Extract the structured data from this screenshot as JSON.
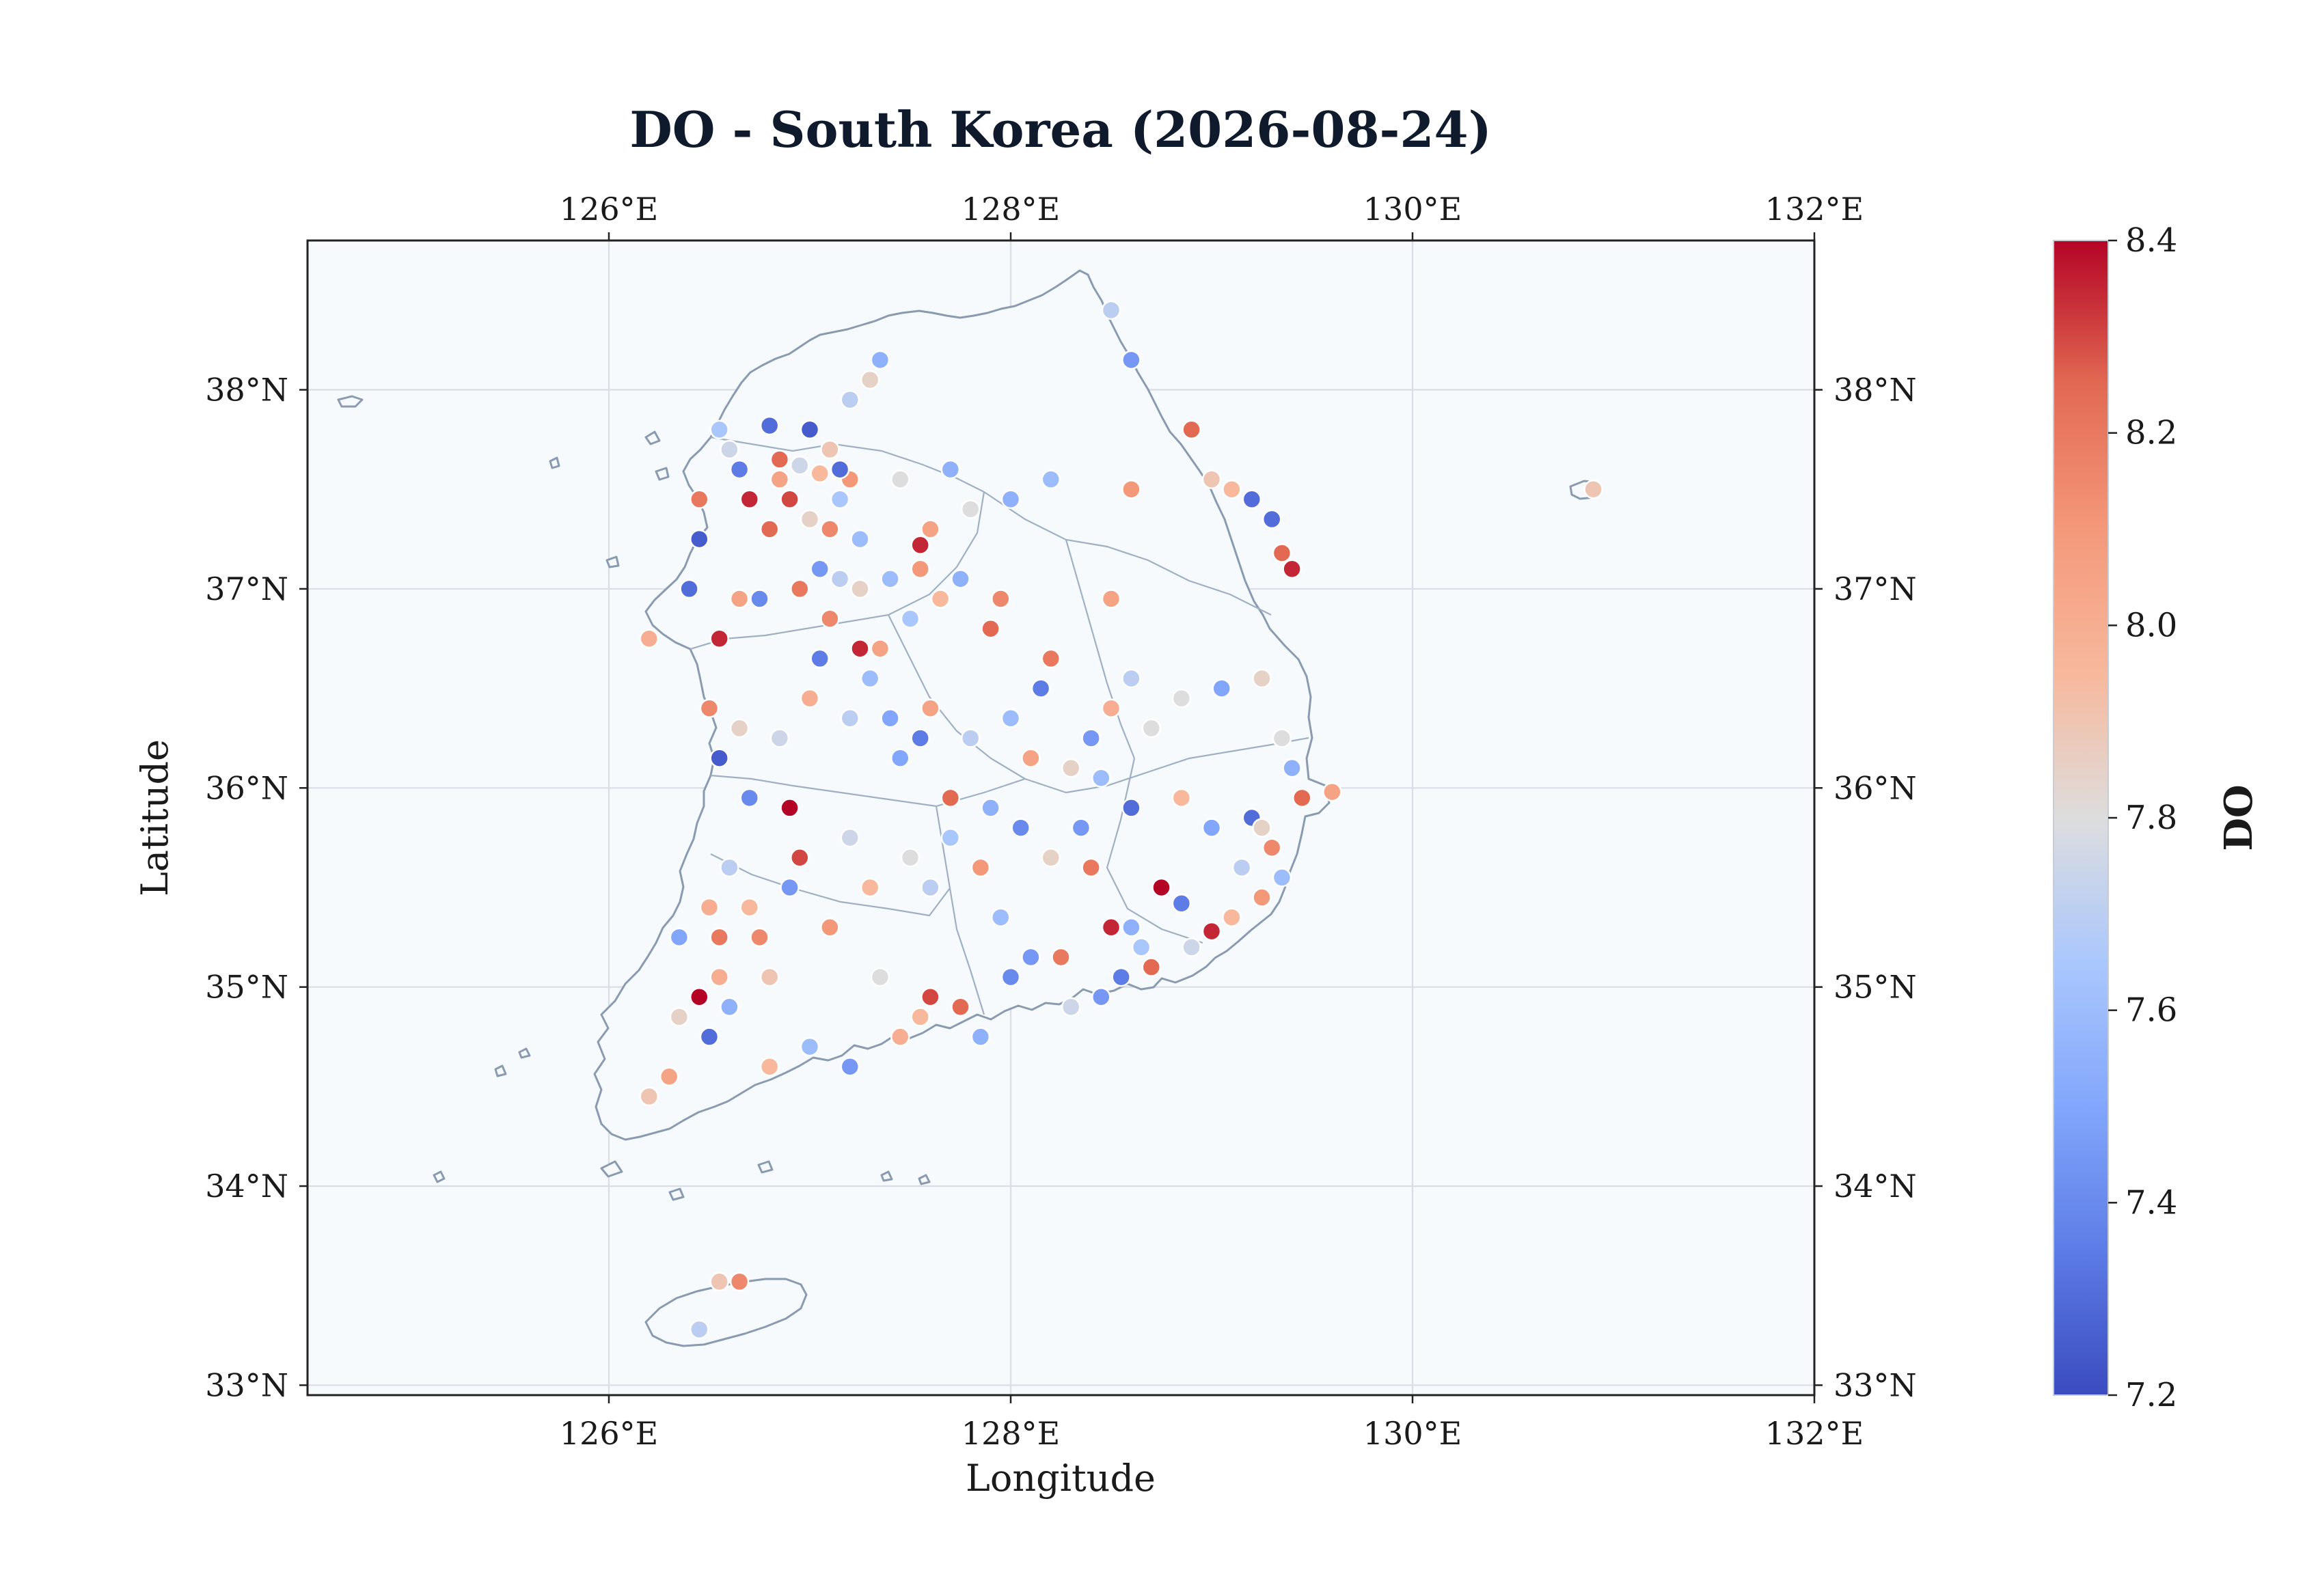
{
  "figure": {
    "title": "DO - South Korea (2026-08-24)",
    "xlabel": "Longitude",
    "ylabel": "Latitude"
  },
  "map": {
    "lon_range": [
      124.5,
      132.0
    ],
    "lat_range": [
      32.95,
      38.75
    ],
    "lon_ticks": [
      126,
      128,
      130,
      132
    ],
    "lat_ticks": [
      33,
      34,
      35,
      36,
      37,
      38
    ],
    "lon_tick_labels": [
      "126°E",
      "128°E",
      "130°E",
      "132°E"
    ],
    "lat_tick_labels": [
      "33°N",
      "34°N",
      "35°N",
      "36°N",
      "37°N",
      "38°N"
    ],
    "grid": true,
    "background_color": "#f7fafd",
    "coastline_color": "#8a9bb0",
    "colors": {
      "low": "#3b4cc0",
      "mid": "#dddddd",
      "high": "#b40426"
    }
  },
  "colorbar": {
    "label": "DO",
    "min": 7.2,
    "max": 8.4,
    "ticks": [
      "7.2",
      "7.4",
      "7.6",
      "7.8",
      "8.0",
      "8.2",
      "8.4"
    ],
    "colormap": "coolwarm"
  },
  "chart_data": {
    "type": "scatter",
    "title": "DO - South Korea (2026-08-24)",
    "xlabel": "Longitude",
    "ylabel": "Latitude",
    "xlim": [
      124.5,
      132.0
    ],
    "ylim": [
      32.95,
      38.75
    ],
    "points": [
      [
        126.55,
        37.8,
        7.65
      ],
      [
        126.8,
        37.82,
        7.3
      ],
      [
        126.65,
        37.6,
        7.35
      ],
      [
        126.85,
        37.55,
        8.05
      ],
      [
        126.95,
        37.62,
        7.75
      ],
      [
        127.05,
        37.58,
        7.95
      ],
      [
        127.2,
        37.55,
        8.1
      ],
      [
        127.15,
        37.45,
        7.65
      ],
      [
        126.9,
        37.45,
        8.3
      ],
      [
        126.7,
        37.45,
        8.35
      ],
      [
        127.0,
        37.35,
        7.85
      ],
      [
        127.1,
        37.3,
        8.15
      ],
      [
        126.8,
        37.3,
        8.25
      ],
      [
        127.25,
        37.25,
        7.6
      ],
      [
        127.45,
        37.55,
        7.8
      ],
      [
        127.6,
        37.3,
        8.05
      ],
      [
        127.55,
        37.22,
        8.35
      ],
      [
        127.7,
        37.6,
        7.55
      ],
      [
        127.8,
        37.4,
        7.8
      ],
      [
        128.0,
        37.45,
        7.55
      ],
      [
        128.2,
        37.55,
        7.6
      ],
      [
        128.6,
        37.5,
        8.1
      ],
      [
        128.9,
        37.8,
        8.25
      ],
      [
        129.0,
        37.55,
        7.9
      ],
      [
        129.1,
        37.5,
        7.95
      ],
      [
        129.2,
        37.45,
        7.3
      ],
      [
        129.3,
        37.35,
        7.3
      ],
      [
        129.35,
        37.18,
        8.25
      ],
      [
        129.4,
        37.1,
        8.35
      ],
      [
        128.6,
        38.15,
        7.45
      ],
      [
        128.5,
        38.4,
        7.7
      ],
      [
        127.35,
        38.15,
        7.55
      ],
      [
        127.3,
        38.05,
        7.85
      ],
      [
        127.2,
        37.95,
        7.7
      ],
      [
        127.0,
        37.8,
        7.25
      ],
      [
        126.45,
        37.25,
        7.25
      ],
      [
        126.4,
        37.0,
        7.3
      ],
      [
        126.55,
        36.75,
        8.35
      ],
      [
        126.2,
        36.75,
        8.0
      ],
      [
        126.5,
        36.4,
        8.15
      ],
      [
        126.65,
        36.3,
        7.85
      ],
      [
        126.55,
        36.15,
        7.25
      ],
      [
        126.85,
        36.25,
        7.75
      ],
      [
        127.0,
        36.45,
        8.0
      ],
      [
        127.2,
        36.35,
        7.7
      ],
      [
        127.4,
        36.35,
        7.5
      ],
      [
        127.55,
        36.25,
        7.35
      ],
      [
        127.35,
        36.7,
        8.05
      ],
      [
        127.25,
        36.7,
        8.35
      ],
      [
        127.5,
        36.85,
        7.65
      ],
      [
        127.65,
        36.95,
        7.95
      ],
      [
        127.95,
        36.95,
        8.15
      ],
      [
        127.9,
        36.8,
        8.25
      ],
      [
        128.2,
        36.65,
        8.2
      ],
      [
        128.5,
        36.95,
        8.05
      ],
      [
        128.6,
        36.55,
        7.7
      ],
      [
        128.5,
        36.4,
        8.0
      ],
      [
        128.85,
        36.45,
        7.8
      ],
      [
        129.05,
        36.5,
        7.5
      ],
      [
        129.25,
        36.55,
        7.85
      ],
      [
        129.35,
        36.25,
        7.8
      ],
      [
        129.4,
        36.1,
        7.55
      ],
      [
        129.45,
        35.95,
        8.25
      ],
      [
        129.6,
        35.98,
        8.05
      ],
      [
        129.2,
        35.85,
        7.3
      ],
      [
        129.3,
        35.7,
        8.15
      ],
      [
        129.35,
        35.55,
        7.6
      ],
      [
        129.25,
        35.45,
        8.1
      ],
      [
        129.1,
        35.35,
        7.95
      ],
      [
        129.0,
        35.28,
        8.35
      ],
      [
        128.85,
        35.42,
        7.35
      ],
      [
        128.75,
        35.5,
        8.4
      ],
      [
        128.6,
        35.3,
        7.55
      ],
      [
        128.5,
        35.3,
        8.35
      ],
      [
        128.4,
        35.6,
        8.2
      ],
      [
        128.35,
        35.8,
        7.45
      ],
      [
        128.6,
        35.9,
        7.3
      ],
      [
        128.45,
        36.05,
        7.6
      ],
      [
        128.3,
        36.1,
        7.85
      ],
      [
        128.1,
        36.15,
        8.05
      ],
      [
        127.9,
        35.9,
        7.55
      ],
      [
        127.7,
        35.95,
        8.25
      ],
      [
        127.5,
        35.65,
        7.8
      ],
      [
        127.3,
        35.5,
        7.95
      ],
      [
        127.1,
        35.3,
        8.1
      ],
      [
        126.95,
        35.65,
        8.3
      ],
      [
        126.9,
        35.9,
        8.4
      ],
      [
        126.7,
        35.95,
        7.4
      ],
      [
        126.6,
        35.6,
        7.7
      ],
      [
        126.5,
        35.4,
        8.0
      ],
      [
        126.35,
        35.25,
        7.5
      ],
      [
        126.55,
        35.25,
        8.2
      ],
      [
        126.8,
        35.05,
        7.9
      ],
      [
        126.75,
        35.25,
        8.15
      ],
      [
        126.45,
        34.95,
        8.4
      ],
      [
        126.5,
        34.75,
        7.3
      ],
      [
        126.3,
        34.55,
        8.05
      ],
      [
        126.2,
        34.45,
        7.9
      ],
      [
        126.8,
        34.6,
        7.95
      ],
      [
        127.0,
        34.7,
        7.6
      ],
      [
        127.2,
        34.6,
        7.45
      ],
      [
        127.45,
        34.75,
        8.0
      ],
      [
        127.6,
        34.95,
        8.3
      ],
      [
        127.75,
        34.9,
        8.25
      ],
      [
        127.85,
        34.75,
        7.55
      ],
      [
        128.0,
        35.05,
        7.4
      ],
      [
        128.1,
        35.15,
        7.45
      ],
      [
        128.25,
        35.15,
        8.2
      ],
      [
        128.55,
        35.05,
        7.35
      ],
      [
        128.7,
        35.1,
        8.25
      ],
      [
        128.9,
        35.2,
        7.75
      ],
      [
        127.95,
        35.35,
        7.6
      ],
      [
        127.85,
        35.6,
        8.1
      ],
      [
        127.6,
        35.5,
        7.7
      ],
      [
        127.35,
        35.05,
        7.8
      ],
      [
        126.65,
        33.52,
        8.15
      ],
      [
        126.55,
        33.52,
        7.9
      ],
      [
        126.45,
        33.28,
        7.7
      ],
      [
        130.9,
        37.5,
        7.9
      ],
      [
        127.05,
        37.1,
        7.45
      ],
      [
        126.95,
        37.0,
        8.2
      ],
      [
        127.15,
        37.05,
        7.7
      ],
      [
        126.75,
        36.95,
        7.4
      ],
      [
        126.65,
        36.95,
        8.05
      ],
      [
        127.4,
        37.05,
        7.6
      ],
      [
        127.55,
        37.1,
        8.1
      ],
      [
        127.75,
        37.05,
        7.55
      ],
      [
        126.85,
        37.65,
        8.25
      ],
      [
        127.1,
        37.7,
        7.9
      ],
      [
        127.15,
        37.6,
        7.3
      ],
      [
        126.6,
        37.7,
        7.75
      ],
      [
        126.45,
        37.45,
        8.2
      ],
      [
        127.25,
        37.0,
        7.85
      ],
      [
        127.1,
        36.85,
        8.15
      ],
      [
        127.3,
        36.55,
        7.6
      ],
      [
        127.05,
        36.65,
        7.35
      ],
      [
        127.6,
        36.4,
        8.05
      ],
      [
        127.45,
        36.15,
        7.5
      ],
      [
        127.8,
        36.25,
        7.7
      ],
      [
        128.0,
        36.35,
        7.6
      ],
      [
        128.15,
        36.5,
        7.35
      ],
      [
        128.4,
        36.25,
        7.45
      ],
      [
        128.7,
        36.3,
        7.8
      ],
      [
        128.85,
        35.95,
        7.95
      ],
      [
        129.0,
        35.8,
        7.5
      ],
      [
        128.2,
        35.65,
        7.85
      ],
      [
        128.05,
        35.8,
        7.4
      ],
      [
        127.7,
        35.75,
        7.65
      ],
      [
        127.2,
        35.75,
        7.75
      ],
      [
        126.9,
        35.5,
        7.45
      ],
      [
        126.7,
        35.4,
        7.95
      ],
      [
        126.55,
        35.05,
        8.0
      ],
      [
        126.35,
        34.85,
        7.85
      ],
      [
        126.6,
        34.9,
        7.55
      ],
      [
        127.55,
        34.85,
        7.95
      ],
      [
        128.3,
        34.9,
        7.75
      ],
      [
        128.45,
        34.95,
        7.45
      ],
      [
        128.65,
        35.2,
        7.65
      ],
      [
        129.15,
        35.6,
        7.7
      ],
      [
        129.25,
        35.8,
        7.85
      ]
    ]
  }
}
